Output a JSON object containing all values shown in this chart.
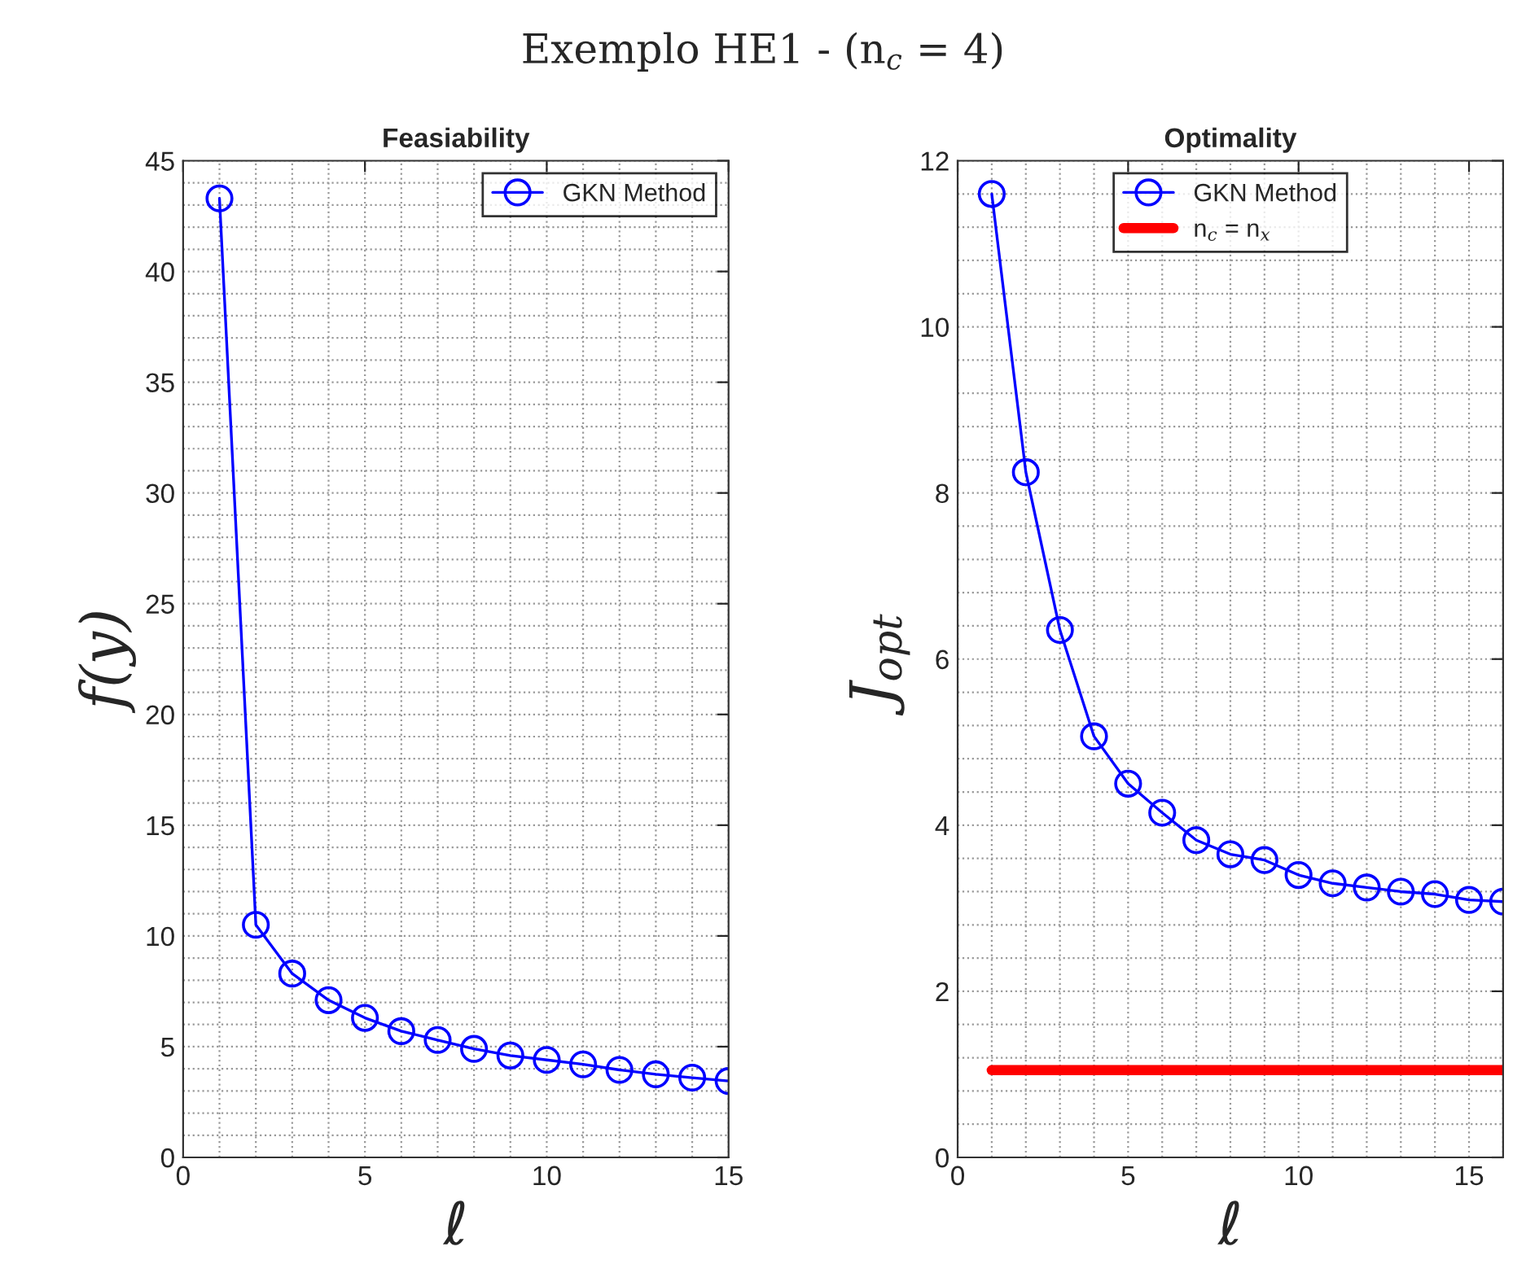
{
  "chart_data": [
    {
      "type": "line",
      "title": "Feasiability",
      "xlabel": "ℓ",
      "ylabel": "f(y)",
      "annotations": [
        "Exemplo HE1 - (n$_{c}$ = 4)"
      ],
      "x": [
        1,
        2,
        3,
        4,
        5,
        6,
        7,
        8,
        9,
        10,
        11,
        12,
        13,
        14,
        15
      ],
      "series": [
        {
          "name": "GKN Method",
          "color": "#0000ff",
          "values": [
            43.3,
            10.5,
            8.3,
            7.1,
            6.3,
            5.7,
            5.3,
            4.9,
            4.6,
            4.4,
            4.2,
            3.95,
            3.75,
            3.6,
            3.45
          ]
        }
      ],
      "xlim": [
        0,
        15
      ],
      "xticks": [
        0,
        5,
        10,
        15
      ],
      "ylim": [
        0,
        45
      ],
      "yticks": [
        0,
        5,
        10,
        15,
        20,
        25,
        30,
        35,
        40,
        45
      ],
      "grid": true,
      "legend": "top right",
      "marker": "circle",
      "line_style": "solid"
    },
    {
      "type": "line",
      "title": "Optimality",
      "xlabel": "ℓ",
      "ylabel": "J$_{opt}$",
      "x": [
        1,
        2,
        3,
        4,
        5,
        6,
        7,
        8,
        9,
        10,
        11,
        12,
        13,
        14,
        15,
        16
      ],
      "series": [
        {
          "name": "GKN Method",
          "color": "#0000ff",
          "marker": "circle",
          "values": [
            11.6,
            8.25,
            6.35,
            5.07,
            4.5,
            4.15,
            3.82,
            3.65,
            3.58,
            3.4,
            3.3,
            3.25,
            3.2,
            3.17,
            3.1,
            3.08
          ]
        },
        {
          "name": "n$_{c}$ = n$_{x}$",
          "color": "#ff0000",
          "marker": "none",
          "x": [
            1,
            16
          ],
          "values": [
            1.05,
            1.05
          ]
        }
      ],
      "xlim": [
        0,
        16
      ],
      "xticks": [
        0,
        5,
        10,
        15
      ],
      "ylim": [
        0,
        12
      ],
      "yticks": [
        0,
        2,
        4,
        6,
        8,
        10,
        12
      ],
      "grid": true,
      "legend": "top",
      "line_style": "solid"
    }
  ]
}
